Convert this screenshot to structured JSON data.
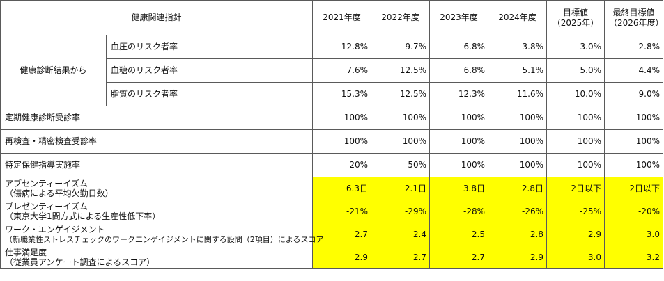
{
  "header": {
    "indicator": "健康関連指針",
    "years": [
      "2021年度",
      "2022年度",
      "2023年度",
      "2024年度"
    ],
    "target": [
      "目標値",
      "（2025年）"
    ],
    "final_target": [
      "最終目標値",
      "（2026年度）"
    ]
  },
  "group": {
    "label": "健康診断結果から",
    "rows": [
      {
        "label": "血圧のリスク者率",
        "values": [
          "12.8%",
          "9.7%",
          "6.8%",
          "3.8%",
          "3.0%",
          "2.8%"
        ]
      },
      {
        "label": "血糖のリスク者率",
        "values": [
          "7.6%",
          "12.5%",
          "6.8%",
          "5.1%",
          "5.0%",
          "4.4%"
        ]
      },
      {
        "label": "脂質のリスク者率",
        "values": [
          "15.3%",
          "12.5%",
          "12.3%",
          "11.6%",
          "10.0%",
          "9.0%"
        ]
      }
    ]
  },
  "rows": [
    {
      "label": "定期健康診断受診率",
      "values": [
        "100%",
        "100%",
        "100%",
        "100%",
        "100%",
        "100%"
      ]
    },
    {
      "label": "再検査・精密検査受診率",
      "values": [
        "100%",
        "100%",
        "100%",
        "100%",
        "100%",
        "100%"
      ]
    },
    {
      "label": "特定保健指導実施率",
      "values": [
        "20%",
        "50%",
        "100%",
        "100%",
        "100%",
        "100%"
      ]
    }
  ],
  "highlight_color": "#ffff00",
  "highlight_rows": [
    {
      "label": [
        "アブセンティーイズム",
        "（傷病による平均欠勤日数）"
      ],
      "values": [
        "6.3日",
        "2.1日",
        "3.8日",
        "2.8日",
        "2日以下",
        "2日以下"
      ]
    },
    {
      "label": [
        "プレゼンティーイズム",
        "（東京大学1問方式による生産性低下率）"
      ],
      "values": [
        "-21%",
        "-29%",
        "-28%",
        "-26%",
        "-25%",
        "-20%"
      ]
    },
    {
      "label": [
        "ワーク・エンゲイジメント",
        "（新職業性ストレスチェックのワークエンゲイジメントに関する設問（2項目）によるスコア"
      ],
      "values": [
        "2.7",
        "2.4",
        "2.5",
        "2.8",
        "2.9",
        "3.0"
      ]
    },
    {
      "label": [
        "仕事満足度",
        "（従業員アンケート調査によるスコア）"
      ],
      "values": [
        "2.9",
        "2.7",
        "2.7",
        "2.9",
        "3.0",
        "3.2"
      ]
    }
  ]
}
